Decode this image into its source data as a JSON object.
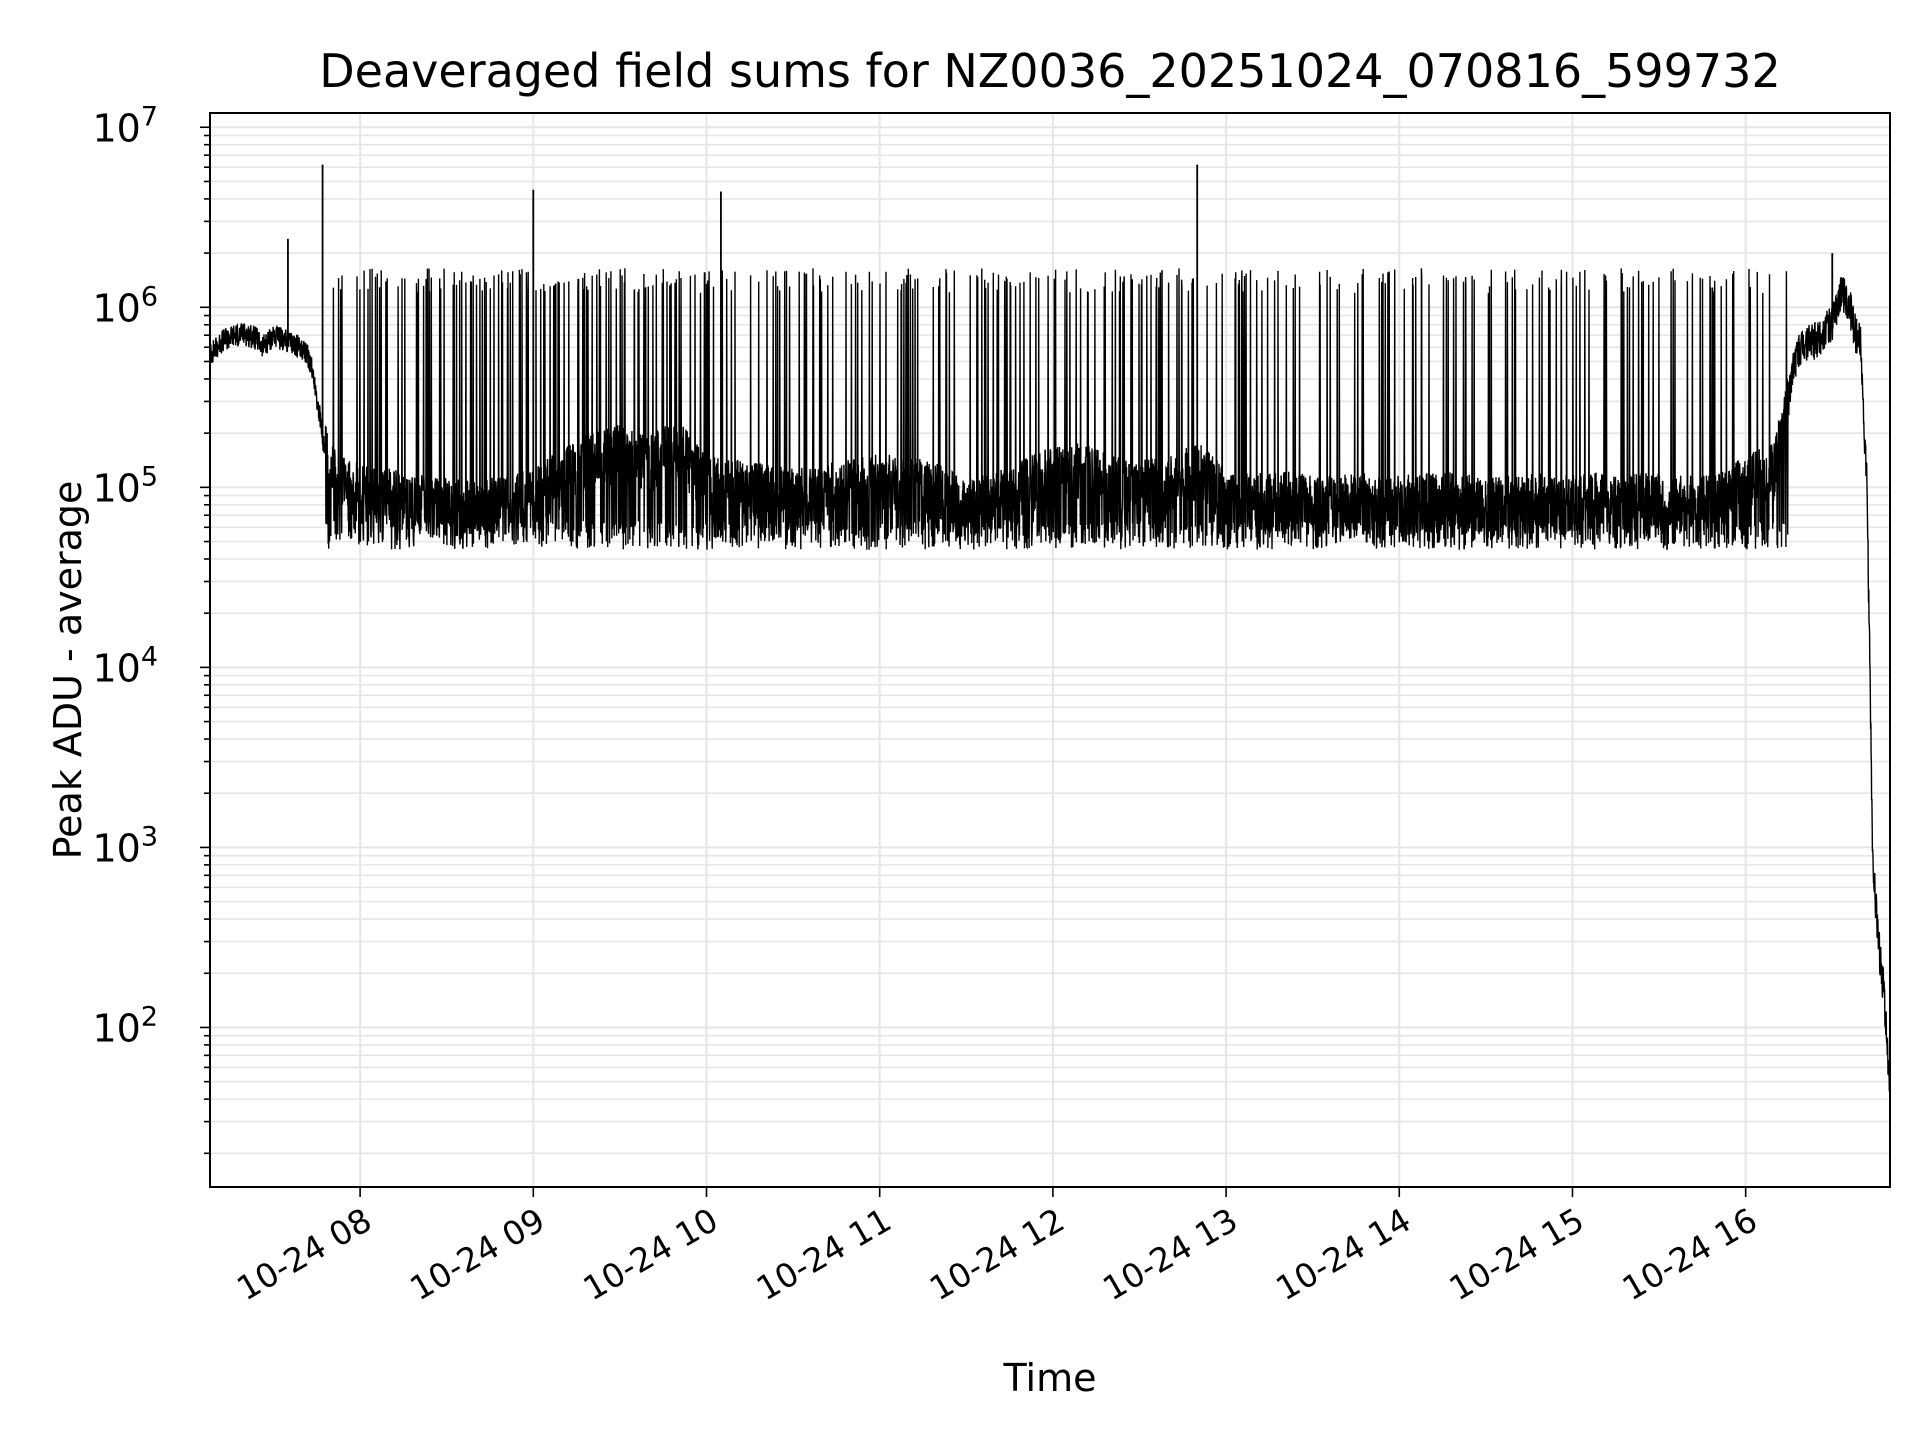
{
  "chart_data": {
    "type": "line",
    "title": "Deaveraged field sums for NZ0036_20251024_070816_599732",
    "xlabel": "Time",
    "ylabel": "Peak ADU - average",
    "x_scale": "time",
    "y_scale": "log",
    "xlim": [
      "2025-10-24 07:08",
      "2025-10-24 16:50"
    ],
    "ylim": [
      13,
      12000000
    ],
    "x_ticks": [
      "10-24 08",
      "10-24 09",
      "10-24 10",
      "10-24 11",
      "10-24 12",
      "10-24 13",
      "10-24 14",
      "10-24 15",
      "10-24 16"
    ],
    "x_tick_times": [
      "2025-10-24 08:00",
      "2025-10-24 09:00",
      "2025-10-24 10:00",
      "2025-10-24 11:00",
      "2025-10-24 12:00",
      "2025-10-24 13:00",
      "2025-10-24 14:00",
      "2025-10-24 15:00",
      "2025-10-24 16:00"
    ],
    "y_ticks": [
      {
        "base": "10",
        "exp": "2",
        "value": 100
      },
      {
        "base": "10",
        "exp": "3",
        "value": 1000
      },
      {
        "base": "10",
        "exp": "4",
        "value": 10000
      },
      {
        "base": "10",
        "exp": "5",
        "value": 100000
      },
      {
        "base": "10",
        "exp": "6",
        "value": 1000000
      },
      {
        "base": "10",
        "exp": "7",
        "value": 10000000
      }
    ],
    "grid": true,
    "line_color": "#000000",
    "grid_color": "#e6e6e6",
    "series": [
      {
        "x": [
          "2025-10-24 07:08",
          "2025-10-24 07:12",
          "2025-10-24 07:16",
          "2025-10-24 07:20",
          "2025-10-24 07:24",
          "2025-10-24 07:26",
          "2025-10-24 07:30",
          "2025-10-24 07:35",
          "2025-10-24 07:40",
          "2025-10-24 07:43",
          "2025-10-24 07:46",
          "2025-10-24 07:48",
          "2025-10-24 07:50",
          "2025-10-24 07:55",
          "2025-10-24 08:00",
          "2025-10-24 08:10",
          "2025-10-24 08:20",
          "2025-10-24 08:30",
          "2025-10-24 08:40",
          "2025-10-24 08:50",
          "2025-10-24 09:00",
          "2025-10-24 09:10",
          "2025-10-24 09:20",
          "2025-10-24 09:30",
          "2025-10-24 09:40",
          "2025-10-24 09:50",
          "2025-10-24 10:00",
          "2025-10-24 10:10",
          "2025-10-24 10:20",
          "2025-10-24 10:30",
          "2025-10-24 10:40",
          "2025-10-24 10:50",
          "2025-10-24 11:00",
          "2025-10-24 11:10",
          "2025-10-24 11:20",
          "2025-10-24 11:30",
          "2025-10-24 11:40",
          "2025-10-24 11:50",
          "2025-10-24 12:00",
          "2025-10-24 12:10",
          "2025-10-24 12:20",
          "2025-10-24 12:30",
          "2025-10-24 12:40",
          "2025-10-24 12:50",
          "2025-10-24 13:00",
          "2025-10-24 13:10",
          "2025-10-24 13:20",
          "2025-10-24 13:30",
          "2025-10-24 13:40",
          "2025-10-24 13:50",
          "2025-10-24 14:00",
          "2025-10-24 14:10",
          "2025-10-24 14:20",
          "2025-10-24 14:30",
          "2025-10-24 14:40",
          "2025-10-24 14:50",
          "2025-10-24 15:00",
          "2025-10-24 15:10",
          "2025-10-24 15:20",
          "2025-10-24 15:30",
          "2025-10-24 15:40",
          "2025-10-24 15:50",
          "2025-10-24 16:00",
          "2025-10-24 16:10",
          "2025-10-24 16:17",
          "2025-10-24 16:20",
          "2025-10-24 16:25",
          "2025-10-24 16:30",
          "2025-10-24 16:33",
          "2025-10-24 16:36",
          "2025-10-24 16:38",
          "2025-10-24 16:40",
          "2025-10-24 16:41",
          "2025-10-24 16:42",
          "2025-10-24 16:43",
          "2025-10-24 16:44",
          "2025-10-24 16:45",
          "2025-10-24 16:46",
          "2025-10-24 16:47",
          "2025-10-24 16:48",
          "2025-10-24 16:49",
          "2025-10-24 16:50"
        ],
        "y": [
          550000,
          650000,
          700000,
          720000,
          680000,
          600000,
          700000,
          650000,
          600000,
          500000,
          250000,
          150000,
          120000,
          100000,
          90000,
          85000,
          80000,
          75000,
          72000,
          78000,
          85000,
          110000,
          140000,
          150000,
          130000,
          160000,
          100000,
          95000,
          90000,
          85000,
          90000,
          95000,
          105000,
          100000,
          90000,
          75000,
          80000,
          100000,
          110000,
          120000,
          100000,
          95000,
          100000,
          120000,
          85000,
          80000,
          82000,
          78000,
          80000,
          82000,
          78000,
          80000,
          82000,
          75000,
          78000,
          80000,
          78000,
          82000,
          80000,
          80000,
          78000,
          80000,
          100000,
          120000,
          500000,
          600000,
          650000,
          800000,
          1200000,
          1000000,
          700000,
          600000,
          200000,
          100000,
          10000,
          800,
          500,
          300,
          200,
          150,
          80,
          35
        ]
      }
    ],
    "spikes": [
      {
        "x": "2025-10-24 07:35",
        "y": 2400000
      },
      {
        "x": "2025-10-24 07:47",
        "y": 6200000
      },
      {
        "x": "2025-10-24 09:00",
        "y": 4500000
      },
      {
        "x": "2025-10-24 10:05",
        "y": 4400000
      },
      {
        "x": "2025-10-24 12:50",
        "y": 6200000
      },
      {
        "x": "2025-10-24 16:30",
        "y": 2000000
      }
    ],
    "upper_band": {
      "from": "2025-10-24 07:48",
      "to": "2025-10-24 16:15",
      "y": 1500000
    },
    "lower_band": {
      "from": "2025-10-24 07:48",
      "to": "2025-10-24 16:15",
      "y": 50000
    }
  }
}
